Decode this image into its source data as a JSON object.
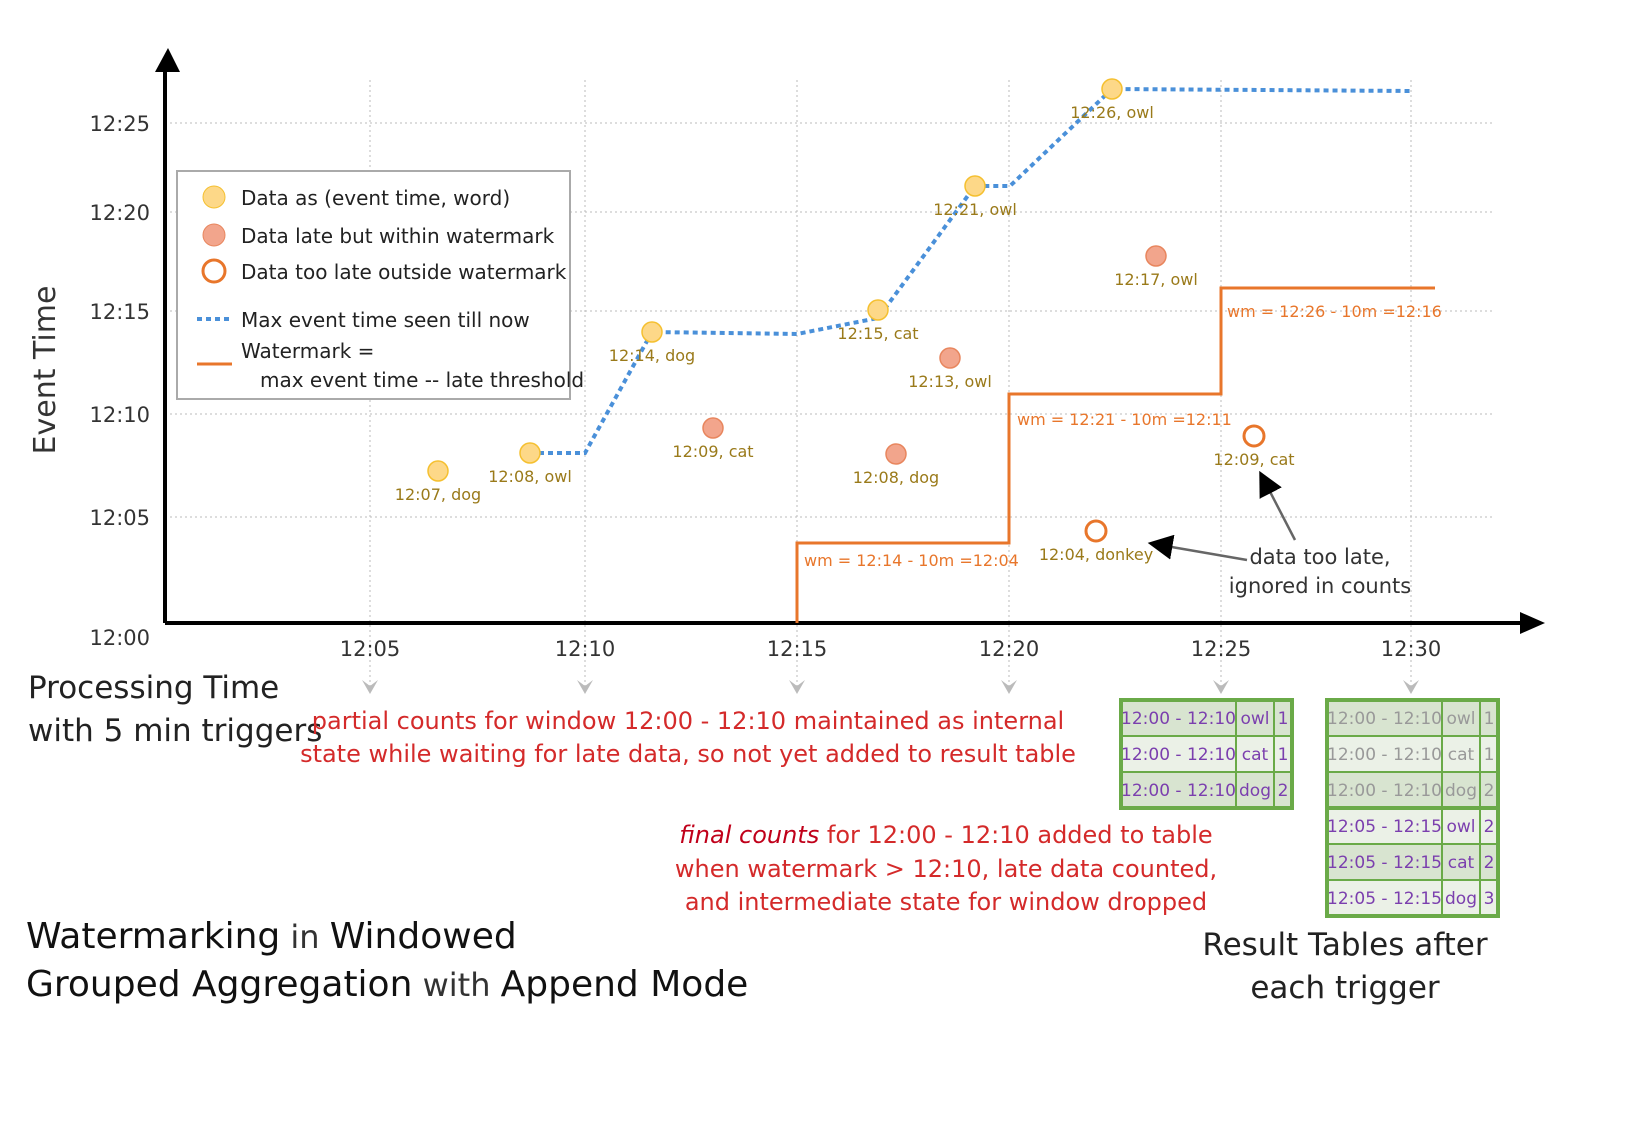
{
  "axes": {
    "y_label": "Event Time",
    "x_label_line1": "Processing Time",
    "x_label_line2": "with 5 min triggers",
    "y_ticks": [
      "12:00",
      "12:05",
      "12:10",
      "12:15",
      "12:20",
      "12:25"
    ],
    "x_ticks": [
      "12:05",
      "12:10",
      "12:15",
      "12:20",
      "12:25",
      "12:30"
    ]
  },
  "legend": {
    "items": [
      "Data as (event time, word)",
      "Data late but within watermark",
      "Data too late outside watermark",
      "Max event time seen till now",
      "Watermark =",
      "max event time -- late threshold"
    ]
  },
  "points": {
    "on_time": [
      "12:07, dog",
      "12:08, owl",
      "12:14, dog",
      "12:15, cat",
      "12:21, owl",
      "12:26, owl"
    ],
    "late": [
      "12:09, cat",
      "12:08, dog",
      "12:13, owl",
      "12:17, owl"
    ],
    "too_late": [
      "12:04, donkey",
      "12:09, cat"
    ]
  },
  "watermarks": [
    "wm = 12:14 - 10m =12:04",
    "wm = 12:21 - 10m =12:11",
    "wm = 12:26 - 10m =12:16"
  ],
  "annotations": {
    "too_late_1": "data too late,",
    "too_late_2": "ignored in counts",
    "partial_1": "partial counts for window 12:00 - 12:10 maintained as internal",
    "partial_2": "state while waiting for late data, so not yet added  to result table",
    "final_em": "final counts",
    "final_1": " for 12:00 - 12:10 added to table",
    "final_2": "when watermark > 12:10, late data counted,",
    "final_3": "and intermediate state for window dropped"
  },
  "title": {
    "w1": "Watermarking",
    "w2": " in ",
    "w3": "Windowed",
    "w4": "Grouped Aggregation",
    "w5": " with ",
    "w6": "Append Mode"
  },
  "result_caption": {
    "line1": "Result Tables after",
    "line2": "each trigger"
  },
  "table_1225": [
    [
      "12:00 - 12:10",
      "owl",
      "1"
    ],
    [
      "12:00 - 12:10",
      "cat",
      "1"
    ],
    [
      "12:00 - 12:10",
      "dog",
      "2"
    ]
  ],
  "table_1230": [
    [
      "12:00 - 12:10",
      "owl",
      "1"
    ],
    [
      "12:00 - 12:10",
      "cat",
      "1"
    ],
    [
      "12:00 - 12:10",
      "dog",
      "2"
    ],
    [
      "12:05 - 12:15",
      "owl",
      "2"
    ],
    [
      "12:05 - 12:15",
      "cat",
      "2"
    ],
    [
      "12:05 - 12:15",
      "dog",
      "3"
    ]
  ],
  "colors": {
    "on_time": "#fdd888",
    "late": "#f2a58c",
    "too_late": "#e8762b",
    "max_line": "#4a90d9",
    "watermark": "#e8762b",
    "table_border": "#6aaa48",
    "table_text": "#7b3fae",
    "faded_text": "#999999"
  }
}
